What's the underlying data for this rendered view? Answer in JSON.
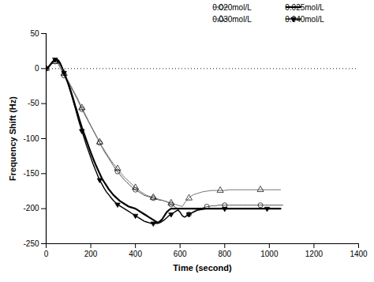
{
  "chart_data": {
    "type": "line",
    "xlabel": "Time (second)",
    "ylabel": "Frequency Shift (Hz)",
    "xlim": [
      0,
      1400
    ],
    "ylim": [
      -250,
      50
    ],
    "xticks": [
      0,
      200,
      400,
      600,
      800,
      1000,
      1200,
      1400
    ],
    "yticks": [
      -250,
      -200,
      -150,
      -100,
      -50,
      0,
      50
    ],
    "grid": false,
    "legend": "upper right",
    "hline": {
      "y": 0,
      "line_style": "dotted"
    },
    "series": [
      {
        "name": "0.020mol/L",
        "color": "#555555",
        "marker": "circle-open",
        "line_style": "solid",
        "x": [
          0,
          5,
          10,
          15,
          20,
          25,
          30,
          35,
          40,
          45,
          50,
          55,
          60,
          65,
          70,
          75,
          80,
          90,
          100,
          110,
          120,
          130,
          140,
          150,
          160,
          170,
          180,
          190,
          200,
          210,
          220,
          230,
          240,
          250,
          260,
          270,
          280,
          290,
          300,
          310,
          320,
          330,
          340,
          350,
          360,
          370,
          380,
          390,
          400,
          410,
          420,
          430,
          440,
          450,
          460,
          470,
          480,
          490,
          500,
          510,
          520,
          530,
          540,
          550,
          560,
          570,
          580,
          590,
          600,
          610,
          620,
          630,
          640,
          650,
          660,
          670,
          680,
          690,
          700,
          710,
          720,
          730,
          740,
          750,
          760,
          770,
          780,
          790,
          800,
          820,
          840,
          860,
          880,
          900,
          920,
          940,
          960,
          980,
          1000,
          1020,
          1040,
          1060
        ],
        "values": [
          0,
          1,
          2,
          3,
          5,
          7,
          8,
          9,
          10,
          9,
          8,
          6,
          3,
          0,
          -3,
          -6,
          -10,
          -15,
          -20,
          -26,
          -32,
          -38,
          -44,
          -51,
          -58,
          -64,
          -70,
          -76,
          -82,
          -88,
          -94,
          -100,
          -106,
          -112,
          -118,
          -123,
          -128,
          -133,
          -138,
          -143,
          -147,
          -151,
          -155,
          -159,
          -162,
          -165,
          -168,
          -171,
          -173,
          -175,
          -177,
          -179,
          -181,
          -182,
          -183,
          -184,
          -185,
          -186,
          -187,
          -188,
          -188,
          -189,
          -190,
          -192,
          -194,
          -196,
          -198,
          -200,
          -205,
          -210,
          -212,
          -210,
          -208,
          -206,
          -204,
          -202,
          -201,
          -200,
          -199,
          -198,
          -197,
          -197,
          -196,
          -196,
          -196,
          -195,
          -195,
          -195,
          -195,
          -195,
          -195,
          -195,
          -195,
          -195,
          -195,
          -195,
          -195,
          -195,
          -195,
          -195,
          -195,
          -195
        ]
      },
      {
        "name": "0.025mol/L",
        "color": "#000000",
        "marker": null,
        "line_style": "solid",
        "x": [
          0,
          5,
          10,
          15,
          20,
          25,
          30,
          35,
          40,
          45,
          50,
          55,
          60,
          65,
          70,
          75,
          80,
          90,
          100,
          110,
          120,
          130,
          140,
          150,
          160,
          170,
          180,
          190,
          200,
          210,
          220,
          230,
          240,
          250,
          260,
          270,
          280,
          290,
          300,
          310,
          320,
          330,
          340,
          350,
          360,
          370,
          380,
          390,
          400,
          410,
          420,
          430,
          440,
          450,
          460,
          470,
          480,
          490,
          500,
          510,
          520,
          530,
          540,
          550,
          560,
          570,
          580,
          590,
          600,
          610,
          620,
          630,
          640,
          650,
          660,
          670,
          680,
          690,
          700,
          710,
          720,
          730,
          740,
          750,
          800,
          850,
          900,
          950,
          1000,
          1050
        ],
        "values": [
          0,
          1,
          2,
          4,
          6,
          8,
          10,
          11,
          12,
          12,
          11,
          10,
          8,
          5,
          2,
          -2,
          -6,
          -14,
          -22,
          -32,
          -42,
          -53,
          -63,
          -74,
          -84,
          -93,
          -102,
          -111,
          -120,
          -128,
          -136,
          -143,
          -150,
          -157,
          -162,
          -167,
          -172,
          -176,
          -180,
          -183,
          -186,
          -189,
          -191,
          -193,
          -195,
          -197,
          -198,
          -199,
          -200,
          -202,
          -204,
          -206,
          -208,
          -210,
          -212,
          -214,
          -216,
          -218,
          -220,
          -218,
          -215,
          -210,
          -205,
          -202,
          -200,
          -200,
          -200,
          -200,
          -200,
          -200,
          -200,
          -200,
          -200,
          -200,
          -200,
          -200,
          -200,
          -200,
          -200,
          -200,
          -200,
          -200,
          -200,
          -200,
          -200,
          -200,
          -200,
          -200,
          -200,
          -200
        ]
      },
      {
        "name": "0.030mol/L",
        "color": "#777777",
        "marker": "triangle-up-open",
        "line_style": "solid",
        "x": [
          0,
          5,
          10,
          15,
          20,
          25,
          30,
          35,
          40,
          45,
          50,
          55,
          60,
          65,
          70,
          75,
          80,
          90,
          100,
          110,
          120,
          130,
          140,
          150,
          160,
          170,
          180,
          190,
          200,
          210,
          220,
          230,
          240,
          250,
          260,
          270,
          280,
          290,
          300,
          310,
          320,
          330,
          340,
          350,
          360,
          370,
          380,
          390,
          400,
          410,
          420,
          430,
          440,
          450,
          460,
          470,
          480,
          490,
          500,
          510,
          520,
          530,
          540,
          550,
          560,
          570,
          580,
          590,
          600,
          610,
          620,
          630,
          640,
          650,
          660,
          680,
          700,
          720,
          740,
          760,
          780,
          800,
          820,
          840,
          860,
          880,
          900,
          930,
          960,
          990,
          1020,
          1050
        ],
        "values": [
          0,
          1,
          2,
          3,
          5,
          6,
          8,
          9,
          10,
          10,
          9,
          8,
          6,
          3,
          0,
          -3,
          -7,
          -12,
          -18,
          -24,
          -30,
          -36,
          -42,
          -49,
          -56,
          -62,
          -68,
          -75,
          -81,
          -87,
          -93,
          -99,
          -105,
          -111,
          -116,
          -121,
          -126,
          -131,
          -135,
          -139,
          -143,
          -147,
          -151,
          -155,
          -158,
          -161,
          -164,
          -167,
          -170,
          -173,
          -175,
          -177,
          -179,
          -181,
          -182,
          -183,
          -184,
          -185,
          -186,
          -187,
          -188,
          -189,
          -190,
          -191,
          -192,
          -193,
          -194,
          -195,
          -196,
          -197,
          -192,
          -188,
          -185,
          -182,
          -180,
          -178,
          -176,
          -175,
          -174,
          -174,
          -174,
          -174,
          -173,
          -173,
          -173,
          -173,
          -173,
          -173,
          -173,
          -173,
          -173,
          -173
        ]
      },
      {
        "name": "0.040mol/L",
        "color": "#000000",
        "marker": "triangle-down",
        "line_style": "solid",
        "x": [
          0,
          5,
          10,
          15,
          20,
          25,
          30,
          35,
          40,
          45,
          50,
          55,
          60,
          65,
          70,
          75,
          80,
          90,
          100,
          110,
          120,
          130,
          140,
          150,
          160,
          170,
          180,
          190,
          200,
          210,
          220,
          230,
          240,
          250,
          260,
          270,
          280,
          290,
          300,
          310,
          320,
          330,
          340,
          350,
          360,
          370,
          380,
          390,
          400,
          410,
          420,
          430,
          440,
          450,
          460,
          470,
          480,
          490,
          500,
          510,
          520,
          530,
          540,
          550,
          560,
          570,
          580,
          590,
          600,
          610,
          620,
          630,
          640,
          660,
          680,
          700,
          720,
          740,
          760,
          780,
          800,
          820,
          840,
          860,
          880,
          900,
          930,
          960,
          990,
          1020,
          1050
        ],
        "values": [
          0,
          1,
          2,
          4,
          6,
          8,
          10,
          12,
          13,
          14,
          13,
          12,
          10,
          7,
          3,
          -1,
          -6,
          -14,
          -24,
          -34,
          -45,
          -56,
          -68,
          -79,
          -89,
          -99,
          -109,
          -118,
          -127,
          -136,
          -144,
          -152,
          -159,
          -165,
          -171,
          -176,
          -180,
          -184,
          -188,
          -191,
          -194,
          -196,
          -198,
          -200,
          -202,
          -204,
          -206,
          -208,
          -210,
          -212,
          -214,
          -216,
          -218,
          -219,
          -220,
          -221,
          -221,
          -221,
          -221,
          -220,
          -218,
          -216,
          -213,
          -210,
          -208,
          -206,
          -204,
          -202,
          -205,
          -210,
          -212,
          -210,
          -208,
          -205,
          -202,
          -201,
          -200,
          -200,
          -200,
          -200,
          -200,
          -200,
          -200,
          -200,
          -200,
          -200,
          -200,
          -200,
          -200,
          -200,
          -200
        ]
      }
    ]
  }
}
